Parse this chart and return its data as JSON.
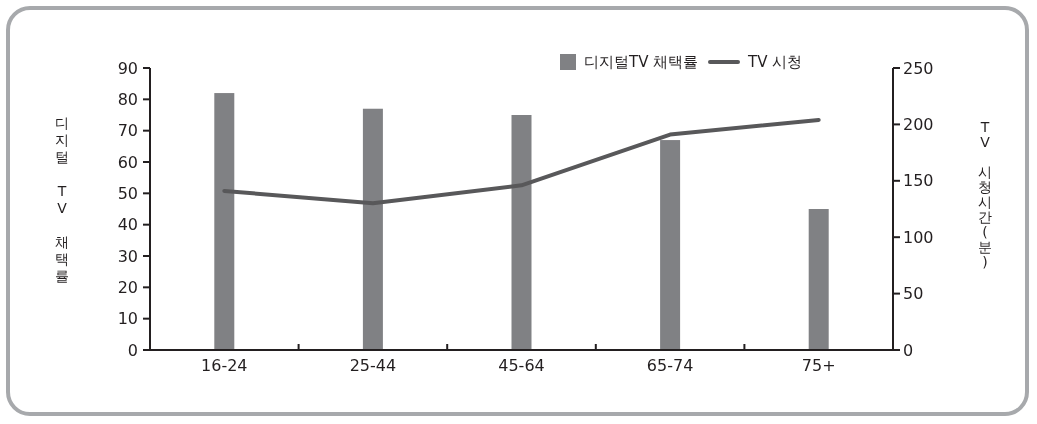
{
  "chart_data": {
    "type": "bar",
    "categories": [
      "16-24",
      "25-44",
      "45-64",
      "65-74",
      "75+"
    ],
    "series": [
      {
        "name": "디지털TV 채택률",
        "color": "#808184",
        "values": [
          82,
          77,
          75,
          67,
          45
        ]
      },
      {
        "name": "TV 시청",
        "type": "line",
        "axis": "y2",
        "color": "#58585a",
        "values": [
          141,
          130,
          146,
          191,
          204
        ]
      }
    ],
    "ylabel": "디지털 TV 채택률",
    "y2label": "TV 시청시간(분)",
    "ylim": [
      0,
      90
    ],
    "yticks": [
      0,
      10,
      20,
      30,
      40,
      50,
      60,
      70,
      80,
      90
    ],
    "y2lim": [
      0,
      250
    ],
    "y2ticks": [
      0,
      50,
      100,
      150,
      200,
      250
    ],
    "legend": "top right"
  }
}
